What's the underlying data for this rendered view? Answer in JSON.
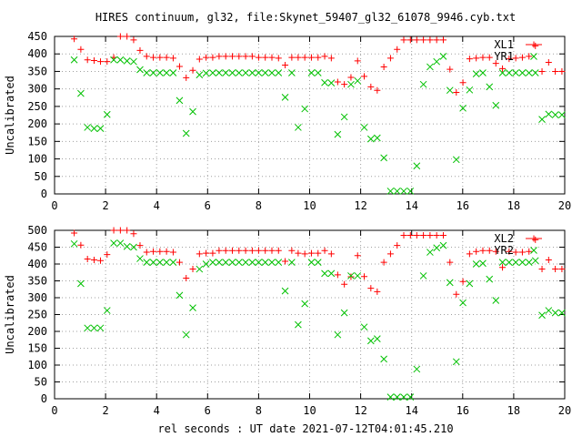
{
  "title": "HIRES continuum, gl32, file:Skynet_59407_gl32_61078_9946.cyb.txt",
  "xlabel": "rel seconds : UT date 2021-07-12T04:01:45.210",
  "colors": {
    "red_series": "#ff0000",
    "green_series": "#00c000",
    "axes": "#000000",
    "grid": "#a0a0a0"
  },
  "chart_data": [
    {
      "type": "scatter",
      "ylabel": "Uncalibrated",
      "xlim": [
        0,
        20
      ],
      "ylim": [
        0,
        450
      ],
      "xticks": [
        0,
        2,
        4,
        6,
        8,
        10,
        12,
        14,
        16,
        18,
        20
      ],
      "yticks": [
        0,
        50,
        100,
        150,
        200,
        250,
        300,
        350,
        400,
        450
      ],
      "grid": true,
      "legend_position": "top-right",
      "series": [
        {
          "name": "XL1",
          "marker": "plus",
          "color": "#ff0000",
          "x": [
            0.77,
            1.03,
            1.29,
            1.55,
            1.8,
            2.06,
            2.32,
            2.58,
            2.84,
            3.1,
            3.35,
            3.61,
            3.87,
            4.13,
            4.39,
            4.65,
            4.9,
            5.16,
            5.42,
            5.68,
            5.94,
            6.2,
            6.45,
            6.71,
            6.97,
            7.23,
            7.49,
            7.75,
            8.0,
            8.26,
            8.52,
            8.78,
            9.04,
            9.3,
            9.55,
            9.81,
            10.07,
            10.33,
            10.59,
            10.85,
            11.1,
            11.36,
            11.62,
            11.88,
            12.14,
            12.4,
            12.65,
            12.91,
            13.17,
            13.43,
            13.69,
            13.95,
            14.2,
            14.46,
            14.72,
            14.98,
            15.24,
            15.5,
            15.75,
            16.01,
            16.27,
            16.53,
            16.79,
            17.05,
            17.3,
            17.56,
            17.82,
            18.08,
            18.34,
            18.6,
            18.85,
            19.11,
            19.37,
            19.63,
            19.89
          ],
          "y": [
            443,
            413,
            383,
            381,
            378,
            378,
            390,
            450,
            450,
            440,
            410,
            393,
            390,
            390,
            390,
            388,
            364,
            332,
            353,
            385,
            390,
            390,
            393,
            393,
            393,
            393,
            393,
            393,
            390,
            390,
            390,
            388,
            368,
            390,
            390,
            390,
            390,
            390,
            393,
            388,
            320,
            313,
            333,
            380,
            336,
            306,
            296,
            363,
            388,
            413,
            440,
            440,
            440,
            440,
            440,
            440,
            440,
            356,
            290,
            318,
            386,
            388,
            390,
            390,
            373,
            358,
            386,
            388,
            390,
            393,
            423,
            350,
            376,
            350,
            350
          ]
        },
        {
          "name": "YR1",
          "marker": "cross",
          "color": "#00c000",
          "x": [
            0.77,
            1.03,
            1.29,
            1.55,
            1.8,
            2.06,
            2.32,
            2.58,
            2.84,
            3.1,
            3.35,
            3.61,
            3.87,
            4.13,
            4.39,
            4.65,
            4.9,
            5.16,
            5.42,
            5.68,
            5.94,
            6.2,
            6.45,
            6.71,
            6.97,
            7.23,
            7.49,
            7.75,
            8.0,
            8.26,
            8.52,
            8.78,
            9.04,
            9.3,
            9.55,
            9.81,
            10.07,
            10.33,
            10.59,
            10.85,
            11.1,
            11.36,
            11.62,
            11.88,
            12.14,
            12.4,
            12.65,
            12.91,
            13.17,
            13.43,
            13.69,
            13.95,
            14.2,
            14.46,
            14.72,
            14.98,
            15.24,
            15.5,
            15.75,
            16.01,
            16.27,
            16.53,
            16.79,
            17.05,
            17.3,
            17.56,
            17.82,
            18.08,
            18.34,
            18.6,
            18.85,
            19.11,
            19.37,
            19.63,
            19.89
          ],
          "y": [
            383,
            287,
            190,
            187,
            187,
            227,
            383,
            383,
            380,
            378,
            355,
            346,
            346,
            346,
            346,
            346,
            267,
            173,
            235,
            340,
            345,
            346,
            346,
            346,
            346,
            346,
            346,
            346,
            346,
            346,
            346,
            346,
            276,
            346,
            190,
            243,
            346,
            346,
            318,
            317,
            170,
            220,
            313,
            323,
            190,
            157,
            160,
            103,
            8,
            8,
            8,
            8,
            80,
            313,
            363,
            378,
            393,
            296,
            98,
            245,
            297,
            343,
            346,
            306,
            253,
            346,
            346,
            346,
            346,
            346,
            346,
            213,
            228,
            226,
            226
          ]
        }
      ]
    },
    {
      "type": "scatter",
      "ylabel": "Uncalibrated",
      "xlim": [
        0,
        20
      ],
      "ylim": [
        0,
        500
      ],
      "xticks": [
        0,
        2,
        4,
        6,
        8,
        10,
        12,
        14,
        16,
        18,
        20
      ],
      "yticks": [
        0,
        50,
        100,
        150,
        200,
        250,
        300,
        350,
        400,
        450,
        500
      ],
      "grid": true,
      "legend_position": "top-right",
      "series": [
        {
          "name": "XL2",
          "marker": "plus",
          "color": "#ff0000",
          "x": [
            0.77,
            1.03,
            1.29,
            1.55,
            1.8,
            2.06,
            2.32,
            2.58,
            2.84,
            3.1,
            3.35,
            3.61,
            3.87,
            4.13,
            4.39,
            4.65,
            4.9,
            5.16,
            5.42,
            5.68,
            5.94,
            6.2,
            6.45,
            6.71,
            6.97,
            7.23,
            7.49,
            7.75,
            8.0,
            8.26,
            8.52,
            8.78,
            9.04,
            9.3,
            9.55,
            9.81,
            10.07,
            10.33,
            10.59,
            10.85,
            11.1,
            11.36,
            11.62,
            11.88,
            12.14,
            12.4,
            12.65,
            12.91,
            13.17,
            13.43,
            13.69,
            13.95,
            14.2,
            14.46,
            14.72,
            14.98,
            15.24,
            15.5,
            15.75,
            16.01,
            16.27,
            16.53,
            16.79,
            17.05,
            17.3,
            17.56,
            17.82,
            18.08,
            18.34,
            18.6,
            18.85,
            19.11,
            19.37,
            19.63,
            19.89
          ],
          "y": [
            492,
            456,
            415,
            412,
            410,
            428,
            500,
            500,
            500,
            490,
            455,
            435,
            437,
            437,
            437,
            435,
            405,
            358,
            385,
            430,
            432,
            432,
            440,
            440,
            440,
            440,
            440,
            440,
            440,
            440,
            440,
            440,
            408,
            440,
            432,
            430,
            432,
            432,
            440,
            430,
            368,
            340,
            362,
            425,
            363,
            328,
            318,
            405,
            430,
            455,
            485,
            485,
            485,
            485,
            485,
            485,
            485,
            405,
            310,
            348,
            430,
            437,
            440,
            440,
            437,
            390,
            437,
            435,
            435,
            437,
            472,
            385,
            412,
            385,
            385
          ]
        },
        {
          "name": "YR2",
          "marker": "cross",
          "color": "#00c000",
          "x": [
            0.77,
            1.03,
            1.29,
            1.55,
            1.8,
            2.06,
            2.32,
            2.58,
            2.84,
            3.1,
            3.35,
            3.61,
            3.87,
            4.13,
            4.39,
            4.65,
            4.9,
            5.16,
            5.42,
            5.68,
            5.94,
            6.2,
            6.45,
            6.71,
            6.97,
            7.23,
            7.49,
            7.75,
            8.0,
            8.26,
            8.52,
            8.78,
            9.04,
            9.3,
            9.55,
            9.81,
            10.07,
            10.33,
            10.59,
            10.85,
            11.1,
            11.36,
            11.62,
            11.88,
            12.14,
            12.4,
            12.65,
            12.91,
            13.17,
            13.43,
            13.69,
            13.95,
            14.2,
            14.46,
            14.72,
            14.98,
            15.24,
            15.5,
            15.75,
            16.01,
            16.27,
            16.53,
            16.79,
            17.05,
            17.3,
            17.56,
            17.82,
            18.08,
            18.34,
            18.6,
            18.85,
            19.11,
            19.37,
            19.63,
            19.89
          ],
          "y": [
            460,
            342,
            210,
            210,
            210,
            262,
            462,
            462,
            452,
            450,
            416,
            405,
            405,
            405,
            405,
            405,
            307,
            190,
            270,
            385,
            400,
            405,
            405,
            405,
            405,
            405,
            405,
            405,
            405,
            405,
            405,
            405,
            320,
            405,
            220,
            282,
            405,
            405,
            372,
            372,
            190,
            255,
            365,
            365,
            213,
            172,
            178,
            118,
            5,
            5,
            5,
            5,
            88,
            365,
            435,
            448,
            455,
            345,
            110,
            285,
            342,
            400,
            402,
            355,
            292,
            405,
            405,
            405,
            405,
            405,
            410,
            248,
            262,
            255,
            255
          ]
        }
      ]
    }
  ]
}
